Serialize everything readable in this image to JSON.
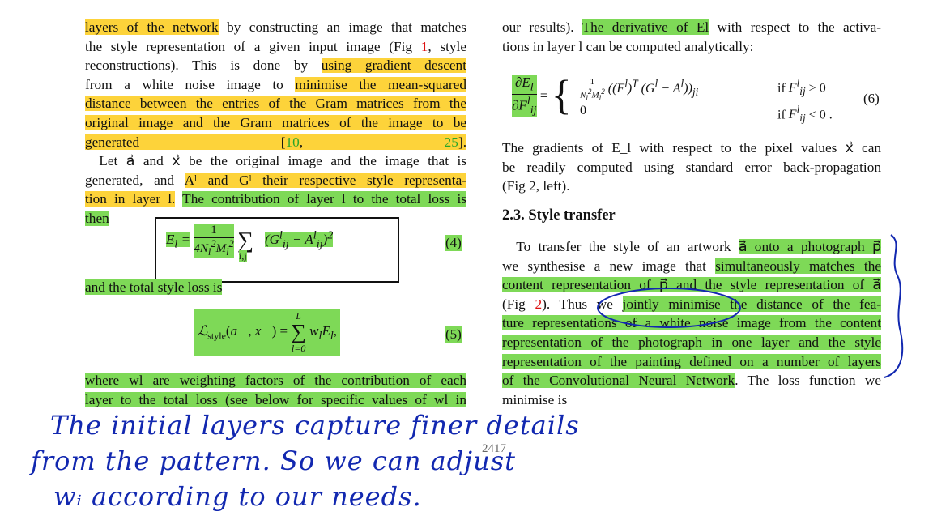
{
  "left": {
    "lines": [
      [
        {
          "t": "layers of the network",
          "c": "y"
        },
        {
          "t": " by constructing an image that matches"
        }
      ],
      [
        {
          "t": "the style representation of a given input image (Fig "
        },
        {
          "t": "1",
          "c": "cite"
        },
        {
          "t": ", style"
        }
      ],
      [
        {
          "t": "reconstructions).  This is done by "
        },
        {
          "t": "using gradient descent",
          "c": "y"
        }
      ],
      [
        {
          "t": "from a white noise image to "
        },
        {
          "t": "minimise the mean-squared",
          "c": "y"
        }
      ],
      [
        {
          "t": "distance between the entries of the Gram matrices from the",
          "c": "y"
        }
      ],
      [
        {
          "t": "original image and the Gram matrices of the image to be",
          "c": "y"
        }
      ],
      [
        {
          "t": "generated [",
          "c": "y"
        },
        {
          "t": "10",
          "c": "y cite-g"
        },
        {
          "t": ", ",
          "c": "y"
        },
        {
          "t": "25",
          "c": "y cite-g"
        },
        {
          "t": "].",
          "c": "y"
        }
      ],
      [
        {
          "t": "    Let a⃗ and x⃗ be the original image and the image that is"
        }
      ],
      [
        {
          "t": "generated, and "
        },
        {
          "t": "Aˡ and Gˡ their respective style representa-",
          "c": "y"
        }
      ],
      [
        {
          "t": "tion in layer l.",
          "c": "y"
        },
        {
          "t": " "
        },
        {
          "t": "The contribution of layer l to the total loss is",
          "c": "g"
        }
      ],
      [
        {
          "t": "then",
          "c": "g"
        }
      ]
    ],
    "eq4": "E_l = 1 / (4N_l² M_l²) Σ_{i,j} (G^l_ij − A^l_ij)²",
    "eq4_label": "(4)",
    "after_eq4": "and the total style loss is",
    "eq5": "ℒ_style(a⃗, x⃗) = Σ_{l=0}^{L} w_l E_l,",
    "eq5_label": "(5)",
    "tail_lines": [
      [
        {
          "t": "where w",
          "c": "g"
        },
        {
          "t": "l",
          "c": "g"
        },
        {
          "t": " are weighting factors of the contribution of each",
          "c": "g"
        }
      ],
      [
        {
          "t": "layer to the total loss (see below for specific values of w",
          "c": "g"
        },
        {
          "t": "l",
          "c": "g"
        },
        {
          "t": " in",
          "c": "g"
        }
      ]
    ]
  },
  "right": {
    "top_lines": [
      [
        {
          "t": "our results). "
        },
        {
          "t": "The derivative of E",
          "c": "g"
        },
        {
          "t": "l",
          "c": "g"
        },
        {
          "t": " with respect to the activa-"
        }
      ],
      [
        {
          "t": "tions in layer l can be computed analytically:"
        }
      ]
    ],
    "eq6_lhs_num": "∂E_l",
    "eq6_lhs_den": "∂F^l_ij",
    "eq6_case1": "1/(N_l² M_l²) ((F^l)ᵀ (G^l − A^l))_ji",
    "eq6_case1_cond": "if F^l_ij > 0",
    "eq6_case2": "0",
    "eq6_case2_cond": "if F^l_ij < 0 .",
    "eq6_label": "(6)",
    "grad_lines": [
      "The gradients of E_l with respect to the pixel values x⃗ can",
      "be readily computed using standard error back-propagation",
      "(Fig 2, left)."
    ],
    "grad_fig": "2",
    "heading": "2.3. Style transfer",
    "st_lines": [
      [
        {
          "t": "    To transfer the style of an artwork "
        },
        {
          "t": "a⃗ onto a photograph p⃗",
          "c": "g"
        }
      ],
      [
        {
          "t": "we synthesise a new image that "
        },
        {
          "t": "simultaneously matches the",
          "c": "g"
        }
      ],
      [
        {
          "t": "content representation of p⃗ and the style representation of a⃗",
          "c": "g"
        }
      ],
      [
        {
          "t": "(Fig "
        },
        {
          "t": "2",
          "c": "cite"
        },
        {
          "t": ").  Thus we "
        },
        {
          "t": "jointly minimise the distance of the fea-",
          "c": "g"
        }
      ],
      [
        {
          "t": "ture representations of a white noise image from the content",
          "c": "g"
        }
      ],
      [
        {
          "t": "representation of the photograph in one layer and the style",
          "c": "g"
        }
      ],
      [
        {
          "t": "representation of the painting defined on a number of layers",
          "c": "g"
        }
      ],
      [
        {
          "t": "of the Convolutional Neural Network",
          "c": "g"
        },
        {
          "t": ". The loss function we"
        }
      ],
      [
        {
          "t": "minimise is"
        }
      ]
    ]
  },
  "page_number": "2417",
  "handwriting": {
    "line1": "The initial layers capture finer details",
    "line2": "from the pattern. So we can adjust",
    "line3": "wᵢ according to our needs."
  },
  "colors": {
    "yellow_highlight": "#fdd33a",
    "green_highlight": "#7ed957",
    "ink_blue": "#1228b0",
    "citation_red": "#d11",
    "citation_green": "#2aa52a"
  }
}
